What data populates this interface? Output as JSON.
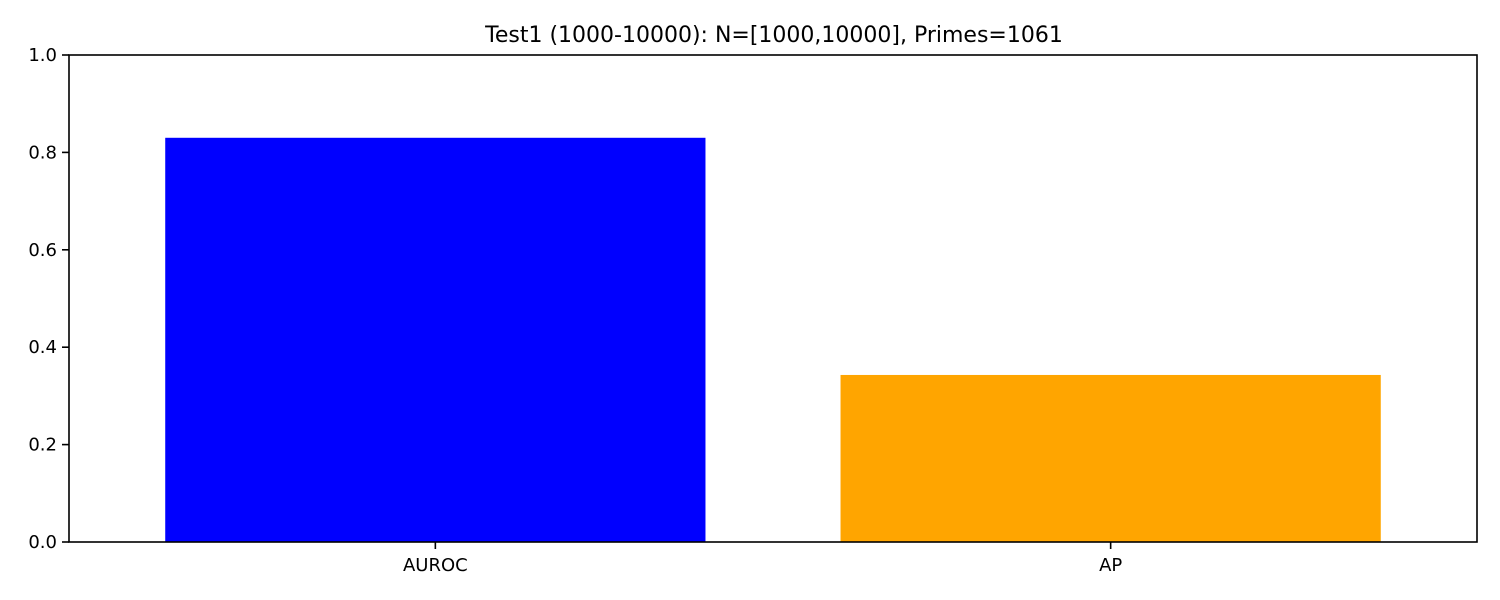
{
  "chart_data": {
    "type": "bar",
    "title": "Test1 (1000-10000): N=[1000,10000], Primes=1061",
    "xlabel": "",
    "ylabel": "",
    "categories": [
      "AUROC",
      "AP"
    ],
    "values": [
      0.83,
      0.343
    ],
    "colors": [
      "#0000ff",
      "#ffa500"
    ],
    "ylim": [
      0,
      1.0
    ],
    "yticks": [
      0.0,
      0.2,
      0.4,
      0.6,
      0.8,
      1.0
    ],
    "ytick_labels": [
      "0.0",
      "0.2",
      "0.4",
      "0.6",
      "0.8",
      "1.0"
    ],
    "grid": false,
    "legend": "none"
  }
}
